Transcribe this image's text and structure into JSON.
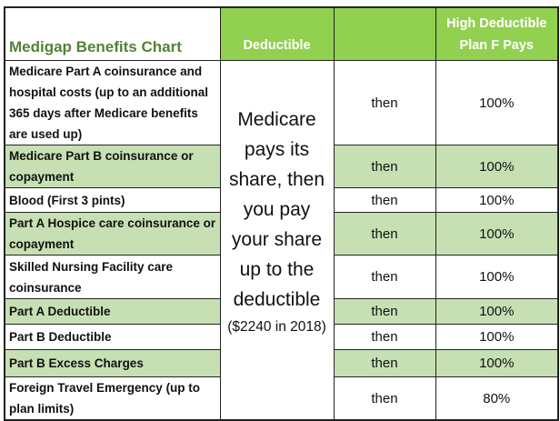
{
  "header": {
    "title": "Medigap Benefits Chart",
    "deductible": "Deductible",
    "then_col": "",
    "pays": "High Deductible Plan F Pays"
  },
  "deductible_note": {
    "main": "Medicare pays its share, then you pay your share up to the deductible",
    "amount": "($2240 in 2018)"
  },
  "colors": {
    "header_green": "#92d050",
    "row_green": "#c6e0b4",
    "title_green": "#548235"
  },
  "rows": [
    {
      "benefit": "Medicare Part A coinsurance and hospital costs (up to an additional 365 days after Medicare benefits are used up)",
      "then": "then",
      "pays": "100%"
    },
    {
      "benefit": "Medicare Part B coinsurance or copayment",
      "then": "then",
      "pays": "100%"
    },
    {
      "benefit": "Blood (First 3 pints)",
      "then": "then",
      "pays": "100%"
    },
    {
      "benefit": "Part A Hospice care coinsurance or copayment",
      "then": "then",
      "pays": "100%"
    },
    {
      "benefit": "Skilled Nursing Facility care coinsurance",
      "then": "then",
      "pays": "100%"
    },
    {
      "benefit": "Part A Deductible",
      "then": "then",
      "pays": "100%"
    },
    {
      "benefit": "Part B Deductible",
      "then": "then",
      "pays": "100%"
    },
    {
      "benefit": "Part B Excess Charges",
      "then": "then",
      "pays": "100%"
    },
    {
      "benefit": "Foreign Travel Emergency (up to plan limits)",
      "then": "then",
      "pays": "80%"
    }
  ]
}
